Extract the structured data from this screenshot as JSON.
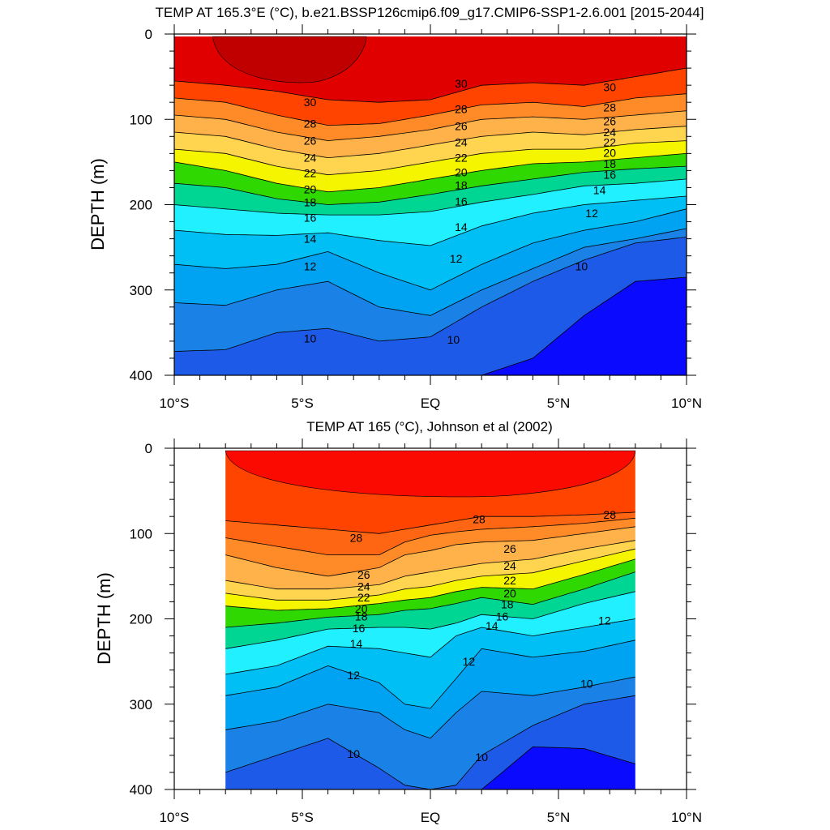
{
  "chart_data": [
    {
      "type": "heatmap",
      "subtype": "filled-contour",
      "title": "TEMP AT 165.3°E (°C), b.e21.BSSP126cmip6.f09_g17.CMIP6-SSP1-2.6.001 [2015-2044]",
      "xlabel": "",
      "ylabel": "DEPTH (m)",
      "x_ticks": [
        "10°S",
        "5°S",
        "EQ",
        "5°N",
        "10°N"
      ],
      "y_ticks": [
        "0",
        "100",
        "200",
        "300",
        "400"
      ],
      "xlim": [
        -10,
        10
      ],
      "ylim": [
        400,
        0
      ],
      "y_inverted": true,
      "data_lat_range": [
        -10,
        10
      ],
      "contour_interval": 1,
      "x": [
        -10,
        -8,
        -6,
        -4,
        -2,
        0,
        2,
        4,
        6,
        8,
        10
      ],
      "isotherms": [
        {
          "t": 30,
          "depth": [
            55,
            60,
            67,
            77,
            80,
            77,
            60,
            57,
            60,
            50,
            40
          ]
        },
        {
          "t": 28,
          "depth": [
            75,
            80,
            95,
            107,
            105,
            95,
            83,
            80,
            85,
            75,
            70
          ]
        },
        {
          "t": 26,
          "depth": [
            95,
            100,
            115,
            125,
            120,
            112,
            100,
            97,
            100,
            95,
            90
          ]
        },
        {
          "t": 24,
          "depth": [
            115,
            120,
            135,
            145,
            140,
            130,
            120,
            115,
            118,
            112,
            108
          ]
        },
        {
          "t": 22,
          "depth": [
            135,
            140,
            155,
            165,
            160,
            150,
            140,
            135,
            135,
            128,
            125
          ]
        },
        {
          "t": 20,
          "depth": [
            150,
            160,
            175,
            185,
            180,
            170,
            160,
            152,
            150,
            145,
            140
          ]
        },
        {
          "t": 18,
          "depth": [
            175,
            180,
            193,
            200,
            197,
            188,
            178,
            170,
            162,
            158,
            155
          ]
        },
        {
          "t": 16,
          "depth": [
            200,
            205,
            210,
            212,
            212,
            208,
            197,
            188,
            178,
            175,
            170
          ]
        },
        {
          "t": 14,
          "depth": [
            230,
            235,
            236,
            233,
            242,
            248,
            225,
            210,
            200,
            195,
            190
          ]
        },
        {
          "t": 12,
          "depth": [
            270,
            275,
            270,
            255,
            280,
            300,
            270,
            245,
            230,
            220,
            205
          ]
        },
        {
          "t": 11,
          "depth": [
            315,
            318,
            300,
            290,
            320,
            330,
            300,
            275,
            250,
            240,
            228
          ]
        },
        {
          "t": 10,
          "depth": [
            372,
            370,
            350,
            345,
            360,
            355,
            320,
            290,
            265,
            245,
            238
          ]
        },
        {
          "t": 9,
          "depth": [
            400,
            400,
            400,
            400,
            400,
            400,
            400,
            380,
            330,
            290,
            285
          ]
        }
      ],
      "warm_core": {
        "t": 31,
        "lat_range": [
          -8.5,
          -2.5
        ],
        "max_depth": 55
      },
      "contour_labels": [
        {
          "text": "30",
          "lat": -4.7,
          "depth": 80
        },
        {
          "text": "28",
          "lat": -4.7,
          "depth": 105
        },
        {
          "text": "26",
          "lat": -4.7,
          "depth": 125
        },
        {
          "text": "24",
          "lat": -4.7,
          "depth": 145
        },
        {
          "text": "22",
          "lat": -4.7,
          "depth": 163
        },
        {
          "text": "20",
          "lat": -4.7,
          "depth": 182
        },
        {
          "text": "18",
          "lat": -4.7,
          "depth": 197
        },
        {
          "text": "16",
          "lat": -4.7,
          "depth": 215
        },
        {
          "text": "14",
          "lat": -4.7,
          "depth": 240
        },
        {
          "text": "12",
          "lat": -4.7,
          "depth": 272
        },
        {
          "text": "10",
          "lat": -4.7,
          "depth": 357
        },
        {
          "text": "30",
          "lat": 1.2,
          "depth": 58
        },
        {
          "text": "28",
          "lat": 1.2,
          "depth": 88
        },
        {
          "text": "26",
          "lat": 1.2,
          "depth": 108
        },
        {
          "text": "24",
          "lat": 1.2,
          "depth": 127
        },
        {
          "text": "22",
          "lat": 1.2,
          "depth": 145
        },
        {
          "text": "20",
          "lat": 1.2,
          "depth": 162
        },
        {
          "text": "18",
          "lat": 1.2,
          "depth": 177
        },
        {
          "text": "16",
          "lat": 1.2,
          "depth": 196
        },
        {
          "text": "14",
          "lat": 1.2,
          "depth": 226
        },
        {
          "text": "12",
          "lat": 1.0,
          "depth": 263
        },
        {
          "text": "10",
          "lat": 0.9,
          "depth": 358
        },
        {
          "text": "30",
          "lat": 7.0,
          "depth": 62
        },
        {
          "text": "28",
          "lat": 7.0,
          "depth": 86
        },
        {
          "text": "26",
          "lat": 7.0,
          "depth": 102
        },
        {
          "text": "24",
          "lat": 7.0,
          "depth": 115
        },
        {
          "text": "22",
          "lat": 7.0,
          "depth": 127
        },
        {
          "text": "20",
          "lat": 7.0,
          "depth": 139
        },
        {
          "text": "18",
          "lat": 7.0,
          "depth": 152
        },
        {
          "text": "16",
          "lat": 7.0,
          "depth": 165
        },
        {
          "text": "14",
          "lat": 6.6,
          "depth": 183
        },
        {
          "text": "12",
          "lat": 6.3,
          "depth": 210
        },
        {
          "text": "10",
          "lat": 5.9,
          "depth": 272
        }
      ]
    },
    {
      "type": "heatmap",
      "subtype": "filled-contour",
      "title": "TEMP AT 165 (°C), Johnson et al (2002)",
      "xlabel": "",
      "ylabel": "DEPTH (m)",
      "x_ticks": [
        "10°S",
        "5°S",
        "EQ",
        "5°N",
        "10°N"
      ],
      "y_ticks": [
        "0",
        "100",
        "200",
        "300",
        "400"
      ],
      "xlim": [
        -10,
        10
      ],
      "ylim": [
        400,
        0
      ],
      "y_inverted": true,
      "data_lat_range": [
        -8,
        8
      ],
      "contour_interval": 1,
      "x": [
        -8,
        -6,
        -4,
        -2,
        -1,
        0,
        1,
        2,
        4,
        6,
        8
      ],
      "isotherms": [
        {
          "t": 28,
          "depth": [
            85,
            90,
            95,
            100,
            95,
            90,
            85,
            80,
            80,
            78,
            75
          ]
        },
        {
          "t": 27,
          "depth": [
            105,
            115,
            125,
            125,
            110,
            102,
            98,
            95,
            92,
            88,
            82
          ]
        },
        {
          "t": 26,
          "depth": [
            125,
            140,
            150,
            140,
            125,
            120,
            113,
            110,
            108,
            100,
            92
          ]
        },
        {
          "t": 24,
          "depth": [
            155,
            165,
            165,
            160,
            150,
            145,
            140,
            135,
            130,
            118,
            108
          ]
        },
        {
          "t": 22,
          "depth": [
            170,
            178,
            178,
            172,
            165,
            162,
            155,
            150,
            146,
            132,
            118
          ]
        },
        {
          "t": 20,
          "depth": [
            185,
            190,
            188,
            182,
            178,
            175,
            168,
            163,
            165,
            148,
            130
          ]
        },
        {
          "t": 18,
          "depth": [
            210,
            205,
            198,
            195,
            190,
            188,
            182,
            175,
            183,
            165,
            145
          ]
        },
        {
          "t": 16,
          "depth": [
            235,
            225,
            212,
            210,
            210,
            212,
            205,
            195,
            200,
            182,
            168
          ]
        },
        {
          "t": 14,
          "depth": [
            265,
            255,
            232,
            235,
            240,
            245,
            220,
            210,
            220,
            210,
            200
          ]
        },
        {
          "t": 12,
          "depth": [
            290,
            280,
            255,
            275,
            300,
            305,
            270,
            235,
            245,
            238,
            225
          ]
        },
        {
          "t": 11,
          "depth": [
            330,
            320,
            300,
            310,
            330,
            340,
            310,
            285,
            290,
            280,
            268
          ]
        },
        {
          "t": 10,
          "depth": [
            380,
            360,
            340,
            375,
            395,
            400,
            395,
            360,
            325,
            300,
            290
          ]
        },
        {
          "t": 9,
          "depth": [
            400,
            400,
            400,
            400,
            400,
            400,
            400,
            400,
            350,
            352,
            370
          ]
        }
      ],
      "warm_core": {
        "t": 29,
        "lat_range": [
          -8,
          8
        ],
        "max_depth": 55
      },
      "contour_labels": [
        {
          "text": "28",
          "lat": -2.9,
          "depth": 105
        },
        {
          "text": "26",
          "lat": -2.6,
          "depth": 148
        },
        {
          "text": "24",
          "lat": -2.6,
          "depth": 162
        },
        {
          "text": "22",
          "lat": -2.6,
          "depth": 175
        },
        {
          "text": "20",
          "lat": -2.7,
          "depth": 188
        },
        {
          "text": "18",
          "lat": -2.7,
          "depth": 197
        },
        {
          "text": "16",
          "lat": -2.8,
          "depth": 211
        },
        {
          "text": "14",
          "lat": -2.9,
          "depth": 229
        },
        {
          "text": "12",
          "lat": -3.0,
          "depth": 266
        },
        {
          "text": "10",
          "lat": -3.0,
          "depth": 358
        },
        {
          "text": "28",
          "lat": 1.9,
          "depth": 83
        },
        {
          "text": "26",
          "lat": 3.1,
          "depth": 118
        },
        {
          "text": "24",
          "lat": 3.1,
          "depth": 138
        },
        {
          "text": "22",
          "lat": 3.1,
          "depth": 155
        },
        {
          "text": "20",
          "lat": 3.1,
          "depth": 170
        },
        {
          "text": "18",
          "lat": 3.0,
          "depth": 183
        },
        {
          "text": "16",
          "lat": 2.8,
          "depth": 197
        },
        {
          "text": "14",
          "lat": 2.4,
          "depth": 208
        },
        {
          "text": "12",
          "lat": 1.5,
          "depth": 250
        },
        {
          "text": "10",
          "lat": 2.0,
          "depth": 362
        },
        {
          "text": "28",
          "lat": 7.0,
          "depth": 78
        },
        {
          "text": "12",
          "lat": 6.8,
          "depth": 202
        },
        {
          "text": "10",
          "lat": 6.1,
          "depth": 276
        }
      ]
    }
  ],
  "colormap": [
    {
      "t": 8,
      "color": "#0a0aff"
    },
    {
      "t": 9,
      "color": "#1e5ae8"
    },
    {
      "t": 10,
      "color": "#1a82e6"
    },
    {
      "t": 11,
      "color": "#00a2f2"
    },
    {
      "t": 12,
      "color": "#00bff5"
    },
    {
      "t": 13,
      "color": "#00d8ff"
    },
    {
      "t": 14,
      "color": "#20f0ff"
    },
    {
      "t": 15,
      "color": "#00e5cc"
    },
    {
      "t": 16,
      "color": "#00d694"
    },
    {
      "t": 17,
      "color": "#00e43a"
    },
    {
      "t": 18,
      "color": "#2ed800"
    },
    {
      "t": 19,
      "color": "#b5f000"
    },
    {
      "t": 20,
      "color": "#f5f500"
    },
    {
      "t": 21,
      "color": "#ffe13a"
    },
    {
      "t": 22,
      "color": "#ffd44f"
    },
    {
      "t": 23,
      "color": "#ffc34e"
    },
    {
      "t": 24,
      "color": "#ffb14a"
    },
    {
      "t": 25,
      "color": "#ff9e3a"
    },
    {
      "t": 26,
      "color": "#ff8a28"
    },
    {
      "t": 27,
      "color": "#ff6614"
    },
    {
      "t": 28,
      "color": "#ff4400"
    },
    {
      "t": 29,
      "color": "#fa0a00"
    },
    {
      "t": 30,
      "color": "#e00000"
    },
    {
      "t": 31,
      "color": "#c00000"
    }
  ]
}
